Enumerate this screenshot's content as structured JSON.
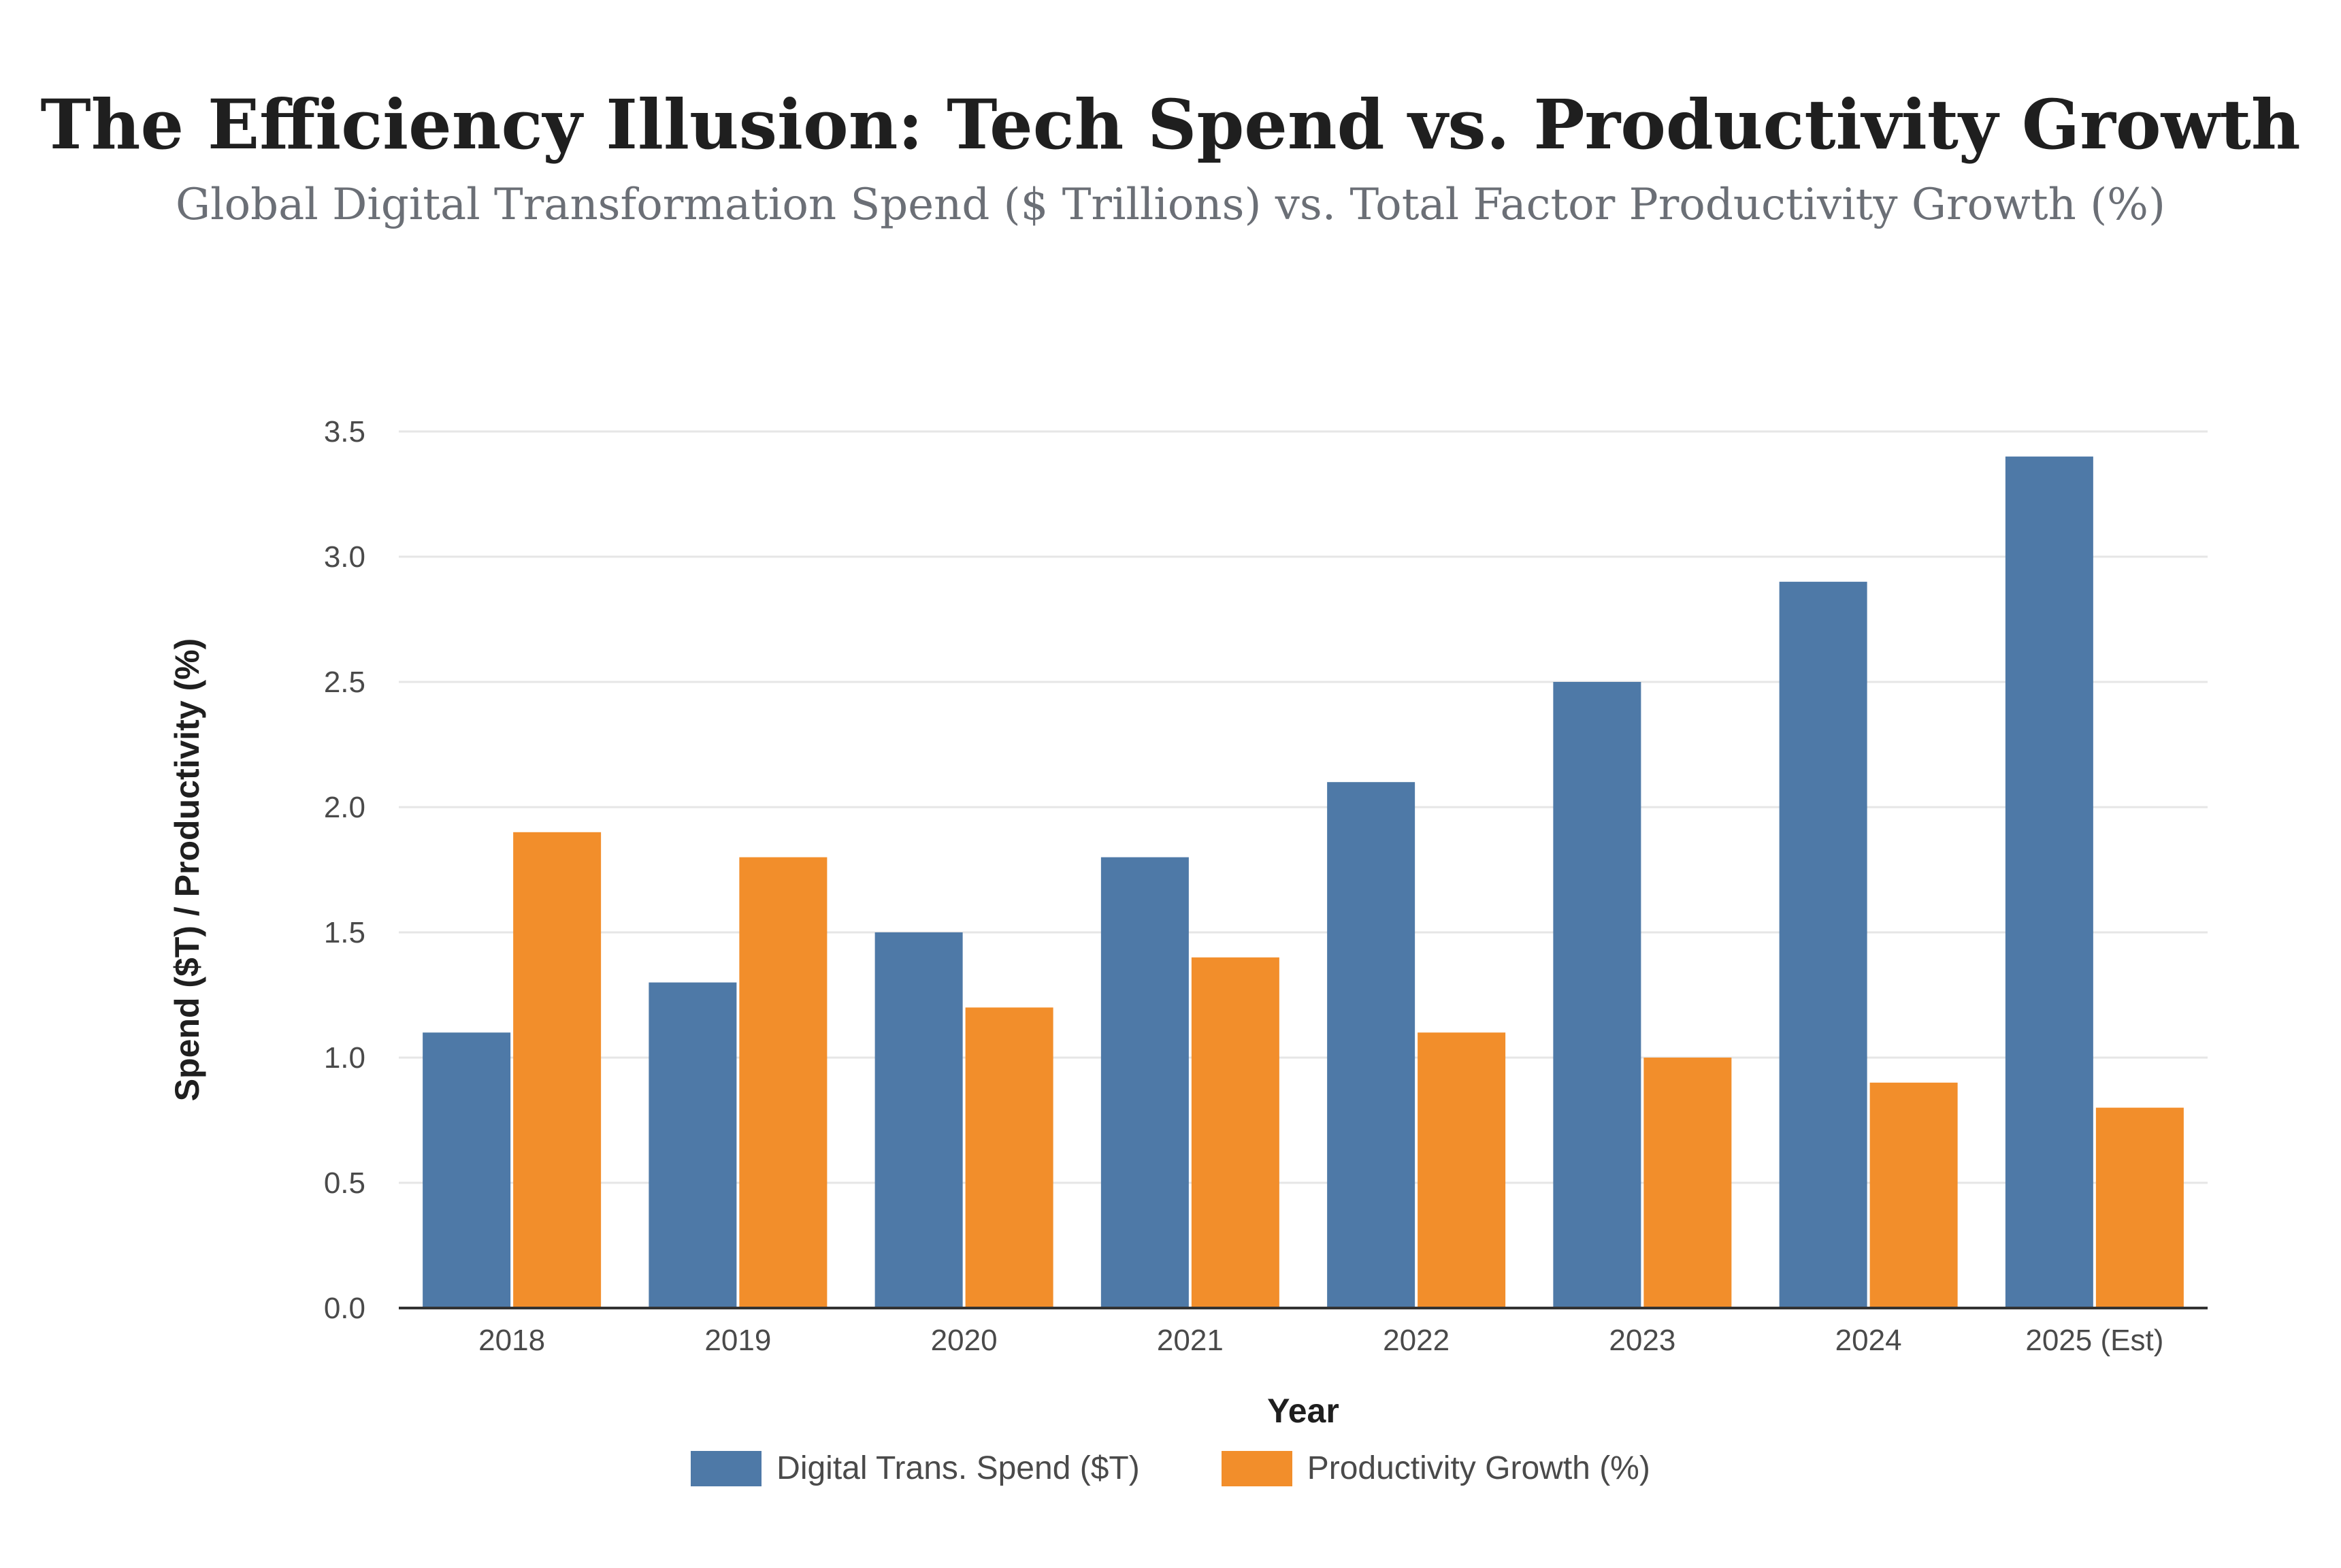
{
  "title": "The Efficiency Illusion: Tech Spend vs. Productivity Growth",
  "subtitle": "Global Digital Transformation Spend ($ Trillions) vs. Total Factor Productivity Growth (%)",
  "colors": {
    "spend": "#4e79a7",
    "productivity": "#f28e2b",
    "grid": "#e6e6e6",
    "axis": "#333333"
  },
  "chart_data": {
    "type": "bar",
    "title": "The Efficiency Illusion: Tech Spend vs. Productivity Growth",
    "xlabel": "Year",
    "ylabel": "Spend ($T) / Productivity (%)",
    "categories": [
      "2018",
      "2019",
      "2020",
      "2021",
      "2022",
      "2023",
      "2024",
      "2025 (Est)"
    ],
    "series": [
      {
        "name": "Digital Trans. Spend ($T)",
        "values": [
          1.1,
          1.3,
          1.5,
          1.8,
          2.1,
          2.5,
          2.9,
          3.4
        ]
      },
      {
        "name": "Productivity Growth (%)",
        "values": [
          1.9,
          1.8,
          1.2,
          1.4,
          1.1,
          1.0,
          0.9,
          0.8
        ]
      }
    ],
    "ylim": [
      0,
      3.5
    ],
    "yticks": [
      "0.0",
      "0.5",
      "1.0",
      "1.5",
      "2.0",
      "2.5",
      "3.0",
      "3.5"
    ],
    "grid": true,
    "legend_position": "bottom-center"
  }
}
